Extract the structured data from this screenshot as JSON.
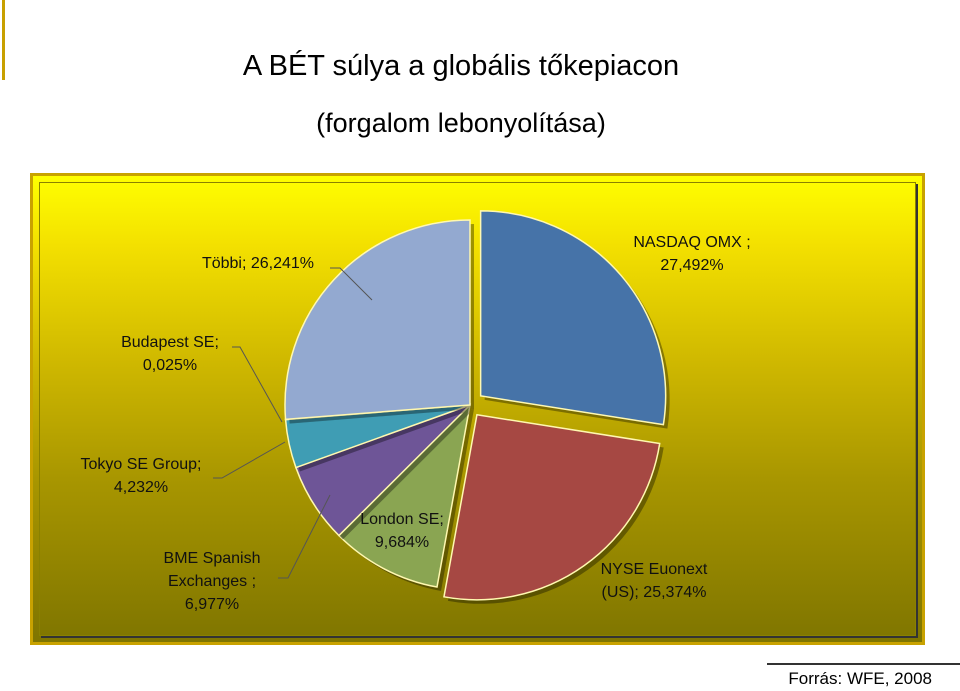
{
  "title": "A BÉT súlya a globális tőkepiacon",
  "subtitle": "(forgalom lebonyolítása)",
  "source": "Forrás: WFE, 2008",
  "chart_data": {
    "type": "pie",
    "title": "A BÉT súlya a globális tőkepiacon",
    "subtitle": "(forgalom lebonyolítása)",
    "exploded": true,
    "slices": [
      {
        "name": "NASDAQ OMX",
        "value": 27.492,
        "label_lines": [
          "NASDAQ OMX ;",
          "27,492%"
        ],
        "color": "#4673a8"
      },
      {
        "name": "NYSE Euonext (US)",
        "value": 25.374,
        "label_lines": [
          "NYSE Euonext",
          "(US); 25,374%"
        ],
        "color": "#a64843"
      },
      {
        "name": "London SE",
        "value": 9.684,
        "label_lines": [
          "London SE;",
          "9,684%"
        ],
        "color": "#8aa552"
      },
      {
        "name": "BME Spanish Exchanges",
        "value": 6.977,
        "label_lines": [
          "BME Spanish",
          "Exchanges ;",
          "6,977%"
        ],
        "color": "#6e5597"
      },
      {
        "name": "Tokyo SE Group",
        "value": 4.232,
        "label_lines": [
          "Tokyo SE Group;",
          "4,232%"
        ],
        "color": "#3f9db4"
      },
      {
        "name": "Budapest SE",
        "value": 0.025,
        "label_lines": [
          "Budapest SE;",
          "0,025%"
        ],
        "color": "#d86a1e"
      },
      {
        "name": "Többi",
        "value": 26.241,
        "label_lines": [
          "Többi; 26,241%"
        ],
        "color": "#93a9d0"
      }
    ],
    "legend": "none"
  }
}
